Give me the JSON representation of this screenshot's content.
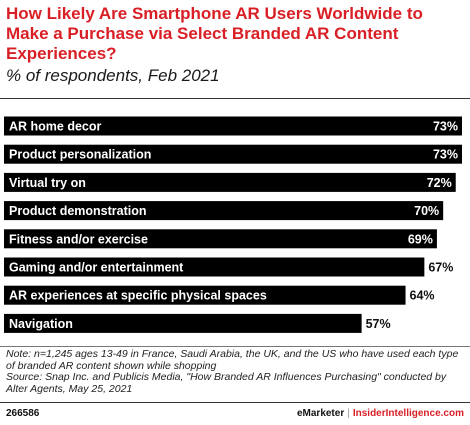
{
  "header": {
    "title": "How Likely Are Smartphone AR Users Worldwide to Make a Purchase via Select Branded AR Content Experiences?",
    "subtitle": "% of respondents, Feb 2021"
  },
  "chart_data": {
    "type": "bar",
    "orientation": "horizontal",
    "categories": [
      "AR home decor",
      "Product personalization",
      "Virtual try on",
      "Product demonstration",
      "Fitness and/or exercise",
      "Gaming and/or entertainment",
      "AR experiences at specific physical spaces",
      "Navigation"
    ],
    "values": [
      73,
      73,
      72,
      70,
      69,
      67,
      64,
      57
    ],
    "value_labels": [
      "73%",
      "73%",
      "72%",
      "70%",
      "69%",
      "67%",
      "64%",
      "57%"
    ],
    "title": "How Likely Are Smartphone AR Users Worldwide to Make a Purchase via Select Branded AR Content Experiences?",
    "subtitle": "% of respondents, Feb 2021",
    "xlabel": "",
    "ylabel": "",
    "xlim": [
      0,
      73
    ],
    "grid": false,
    "bar_color": "#000000"
  },
  "footer": {
    "note": "Note: n=1,245 ages 13-49 in France, Saudi Arabia, the UK, and the US who have used each type of branded AR content shown while shopping",
    "source": "Source: Snap Inc. and Publicis Media, \"How Branded AR Influences Purchasing\" conducted by Alter Agents, May 25, 2021",
    "chart_id": "266586",
    "brand_primary": "eMarketer",
    "brand_separator": "|",
    "brand_secondary": "InsiderIntelligence.com"
  },
  "colors": {
    "title": "#d91f26",
    "bar": "#000000",
    "brand_accent": "#d91f26"
  }
}
